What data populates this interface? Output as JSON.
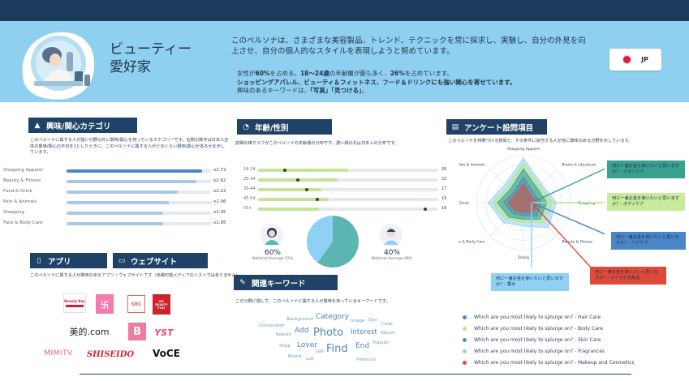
{
  "persona": {
    "title": "ビューティー\n愛好家",
    "description": "このペルソナは、さまざまな美容製品、トレンド、テクニックを常に探求し、実験し、自分の外見を向上させ、自分の個人的なスタイルを表現しようと努めています。",
    "facts_line1_pre": "女性が",
    "facts_line1_b1": "60%",
    "facts_line1_mid": "を占める。",
    "facts_line1_b2": "18〜24歳",
    "facts_line1_mid2": "の年齢層が最も多く、",
    "facts_line1_b3": "26%",
    "facts_line1_post": "を占めています。",
    "facts_line2": "ショッピングアパレル、ビューティ＆フィットネス、フード＆ドリンクにも強い関心を寄せています。",
    "facts_line3_pre": "興味のあるキーワードは、",
    "facts_line3_b": "「写真」「見つける」",
    "facts_line3_post": "。"
  },
  "country": {
    "code": "JP",
    "flag_color": "#e01e3c"
  },
  "interests": {
    "title": "興味/関心カテゴリ",
    "description": "このペルソナに属する人が強い分野以外に興味/関心を持っているカテゴリーです。右側の数字は日本人全体の興味/関心の平均を1としたときに、このペルソナに属する人がどのくらい興味/関心があるかを示しています。",
    "items": [
      {
        "label": "Shopping Apparel",
        "value": "x2.72",
        "fraction": 0.94,
        "color": "#4a86c8"
      },
      {
        "label": "Beauty & Fitness",
        "value": "x2.62",
        "fraction": 0.9,
        "color": "#aac8e6"
      },
      {
        "label": "Food & Drink",
        "value": "x2.22",
        "fraction": 0.77,
        "color": "#aac8e6"
      },
      {
        "label": "Pets & Animals",
        "value": "x2.06",
        "fraction": 0.71,
        "color": "#aac8e6"
      },
      {
        "label": "Shopping",
        "value": "x1.95",
        "fraction": 0.67,
        "color": "#aac8e6"
      },
      {
        "label": "Face & Body Care",
        "value": "x1.95",
        "fraction": 0.67,
        "color": "#aac8e6"
      }
    ]
  },
  "age_gender": {
    "title": "年齢/性別",
    "description": "詳細の棒グラフがこのペルソナの年齢層の分布です。濃い緑の丸は日本人の分布です。",
    "ages": [
      {
        "label": "18-24",
        "value": "26",
        "fraction": 0.5,
        "national": 0.15
      },
      {
        "label": "25-34",
        "value": "22",
        "fraction": 0.44,
        "national": 0.22
      },
      {
        "label": "35-44",
        "value": "17",
        "fraction": 0.35,
        "national": 0.27
      },
      {
        "label": "45-54",
        "value": "19",
        "fraction": 0.39,
        "national": 0.33
      },
      {
        "label": "55+",
        "value": "16",
        "fraction": 0.34,
        "national": 0.93
      }
    ],
    "female": {
      "percent": "60%",
      "national": "National Average 52%",
      "share": 0.6,
      "color": "#5bb5b0"
    },
    "male": {
      "percent": "40%",
      "national": "National Average 48%",
      "share": 0.4,
      "color": "#8fd0f5"
    }
  },
  "survey": {
    "title": "アンケート設問項目",
    "description": "このペルソナを特徴づける質問と、その条件に該当する人が他に興味のある分野を示しています。",
    "axes": [
      "Shopping Apparel",
      "Books & Literature",
      "Shopping",
      "Beauty & Fitness",
      "Family",
      "Face & Body Care",
      "Food & Drink",
      "Pets & Animals"
    ],
    "callouts": [
      {
        "text": "何に一番お金を使いたいと思いますか？- スキンケア",
        "color": "#3aa090"
      },
      {
        "text": "何に一番お金を使いたいと思いますか？- ボディケア",
        "color": "#b8e68a"
      },
      {
        "text": "何に一番お金を使いたいと思いますか？- ヘアケア",
        "color": "#4a86c8"
      },
      {
        "text": "何に一番お金を使いたいと思いますか？- メイクと化粧品",
        "color": "#e04a3a"
      },
      {
        "text": "何に一番お金を使いたいと思いますか？- 香水",
        "color": "#8fd0f5"
      }
    ],
    "legend": [
      {
        "text": "Which are you most likely to splurge on? - Hair Care",
        "color": "#4a86c8"
      },
      {
        "text": "Which are you most likely to splurge on? - Body Care",
        "color": "#b8e68a"
      },
      {
        "text": "Which are you most likely to splurge on? - Skin Care",
        "color": "#3aa090"
      },
      {
        "text": "Which are you most likely to splurge on? - Fragrances",
        "color": "#8fd0f5"
      },
      {
        "text": "Which are you most likely to splurge on? - Makeup and Cosmetics",
        "color": "#e04a3a"
      }
    ]
  },
  "apps": {
    "title": "アプリ",
    "description": "このペルソナに属する人が興味のあるアプリ・ウェブサイトです（出稿可能メディアのリストではありません）",
    "logos": [
      "Beauty Key",
      "MY BEAUTY PLAY",
      "SBC",
      "美的.com",
      "B",
      "YST",
      "MIMITV",
      "SHISEIDO",
      "VoCE"
    ]
  },
  "website": {
    "title": "ウェブサイト"
  },
  "keywords": {
    "title": "関連キーワード",
    "description": "この分野に関して、このペルソナに属する人が興味を持っているキーワードです。",
    "words": [
      "Background",
      "Category",
      "Image",
      "Day",
      "Color",
      "Convenient",
      "Add",
      "Photo",
      "Interest",
      "Album",
      "Beauty",
      "Popular",
      "Shop",
      "Lover",
      "End",
      "Get",
      "Find",
      "Brand",
      "List",
      "Premium"
    ]
  }
}
